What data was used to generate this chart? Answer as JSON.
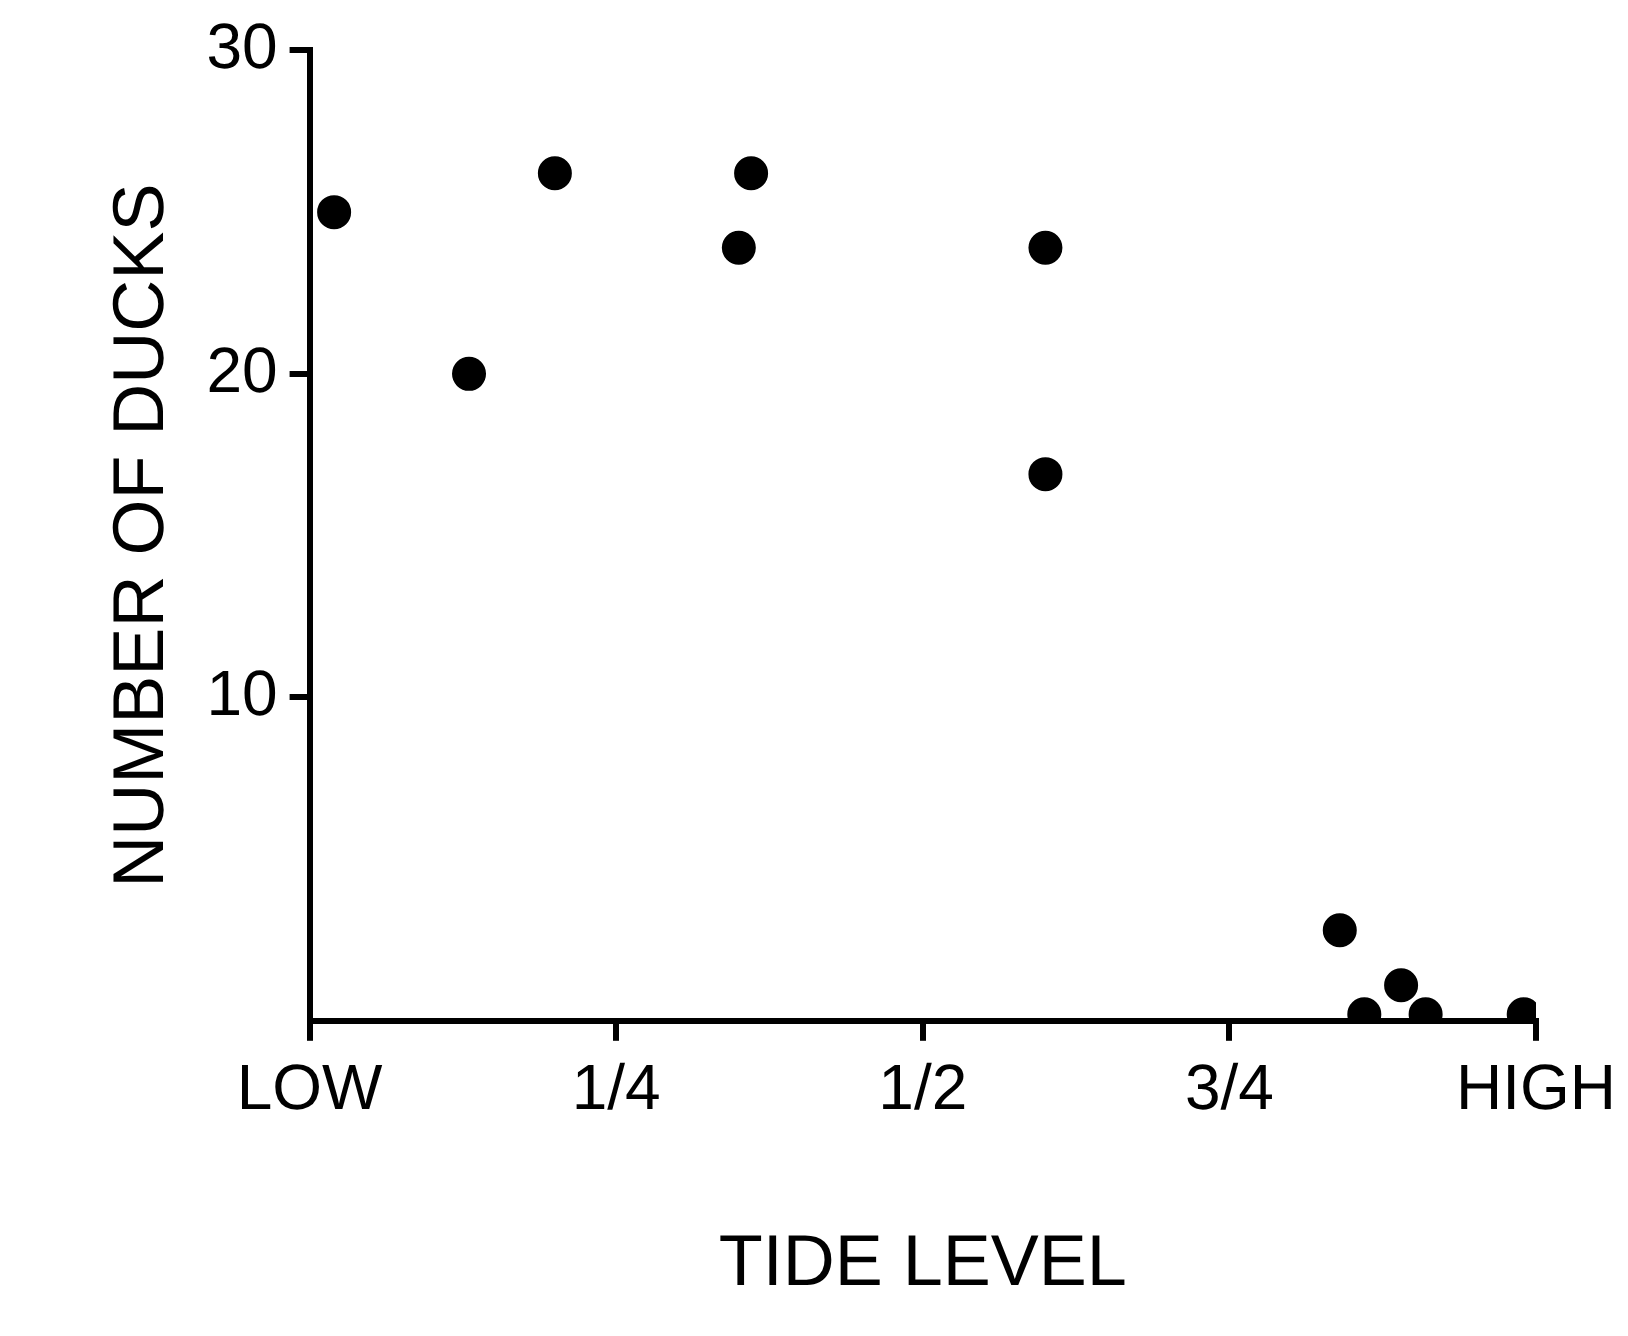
{
  "chart_data": {
    "type": "scatter",
    "xlabel": "TIDE LEVEL",
    "ylabel": "NUMBER OF DUCKS",
    "x": [
      0.02,
      0.13,
      0.2,
      0.35,
      0.36,
      0.6,
      0.6,
      0.84,
      0.86,
      0.89,
      0.91,
      0.99
    ],
    "values": [
      25,
      20,
      26.2,
      23.9,
      26.2,
      23.9,
      16.9,
      2.8,
      0.2,
      1.1,
      0.2,
      0.2
    ],
    "color": "#000000",
    "marker": "circle",
    "xlim": [
      0,
      1
    ],
    "xticks": [
      {
        "value": 0,
        "label": "LOW"
      },
      {
        "value": 0.25,
        "label": "1/4"
      },
      {
        "value": 0.5,
        "label": "1/2"
      },
      {
        "value": 0.75,
        "label": "3/4"
      },
      {
        "value": 1,
        "label": "HIGH"
      }
    ],
    "ylim": [
      0,
      30
    ],
    "yticks": [
      10,
      20,
      30
    ],
    "grid": false,
    "legend": false
  }
}
